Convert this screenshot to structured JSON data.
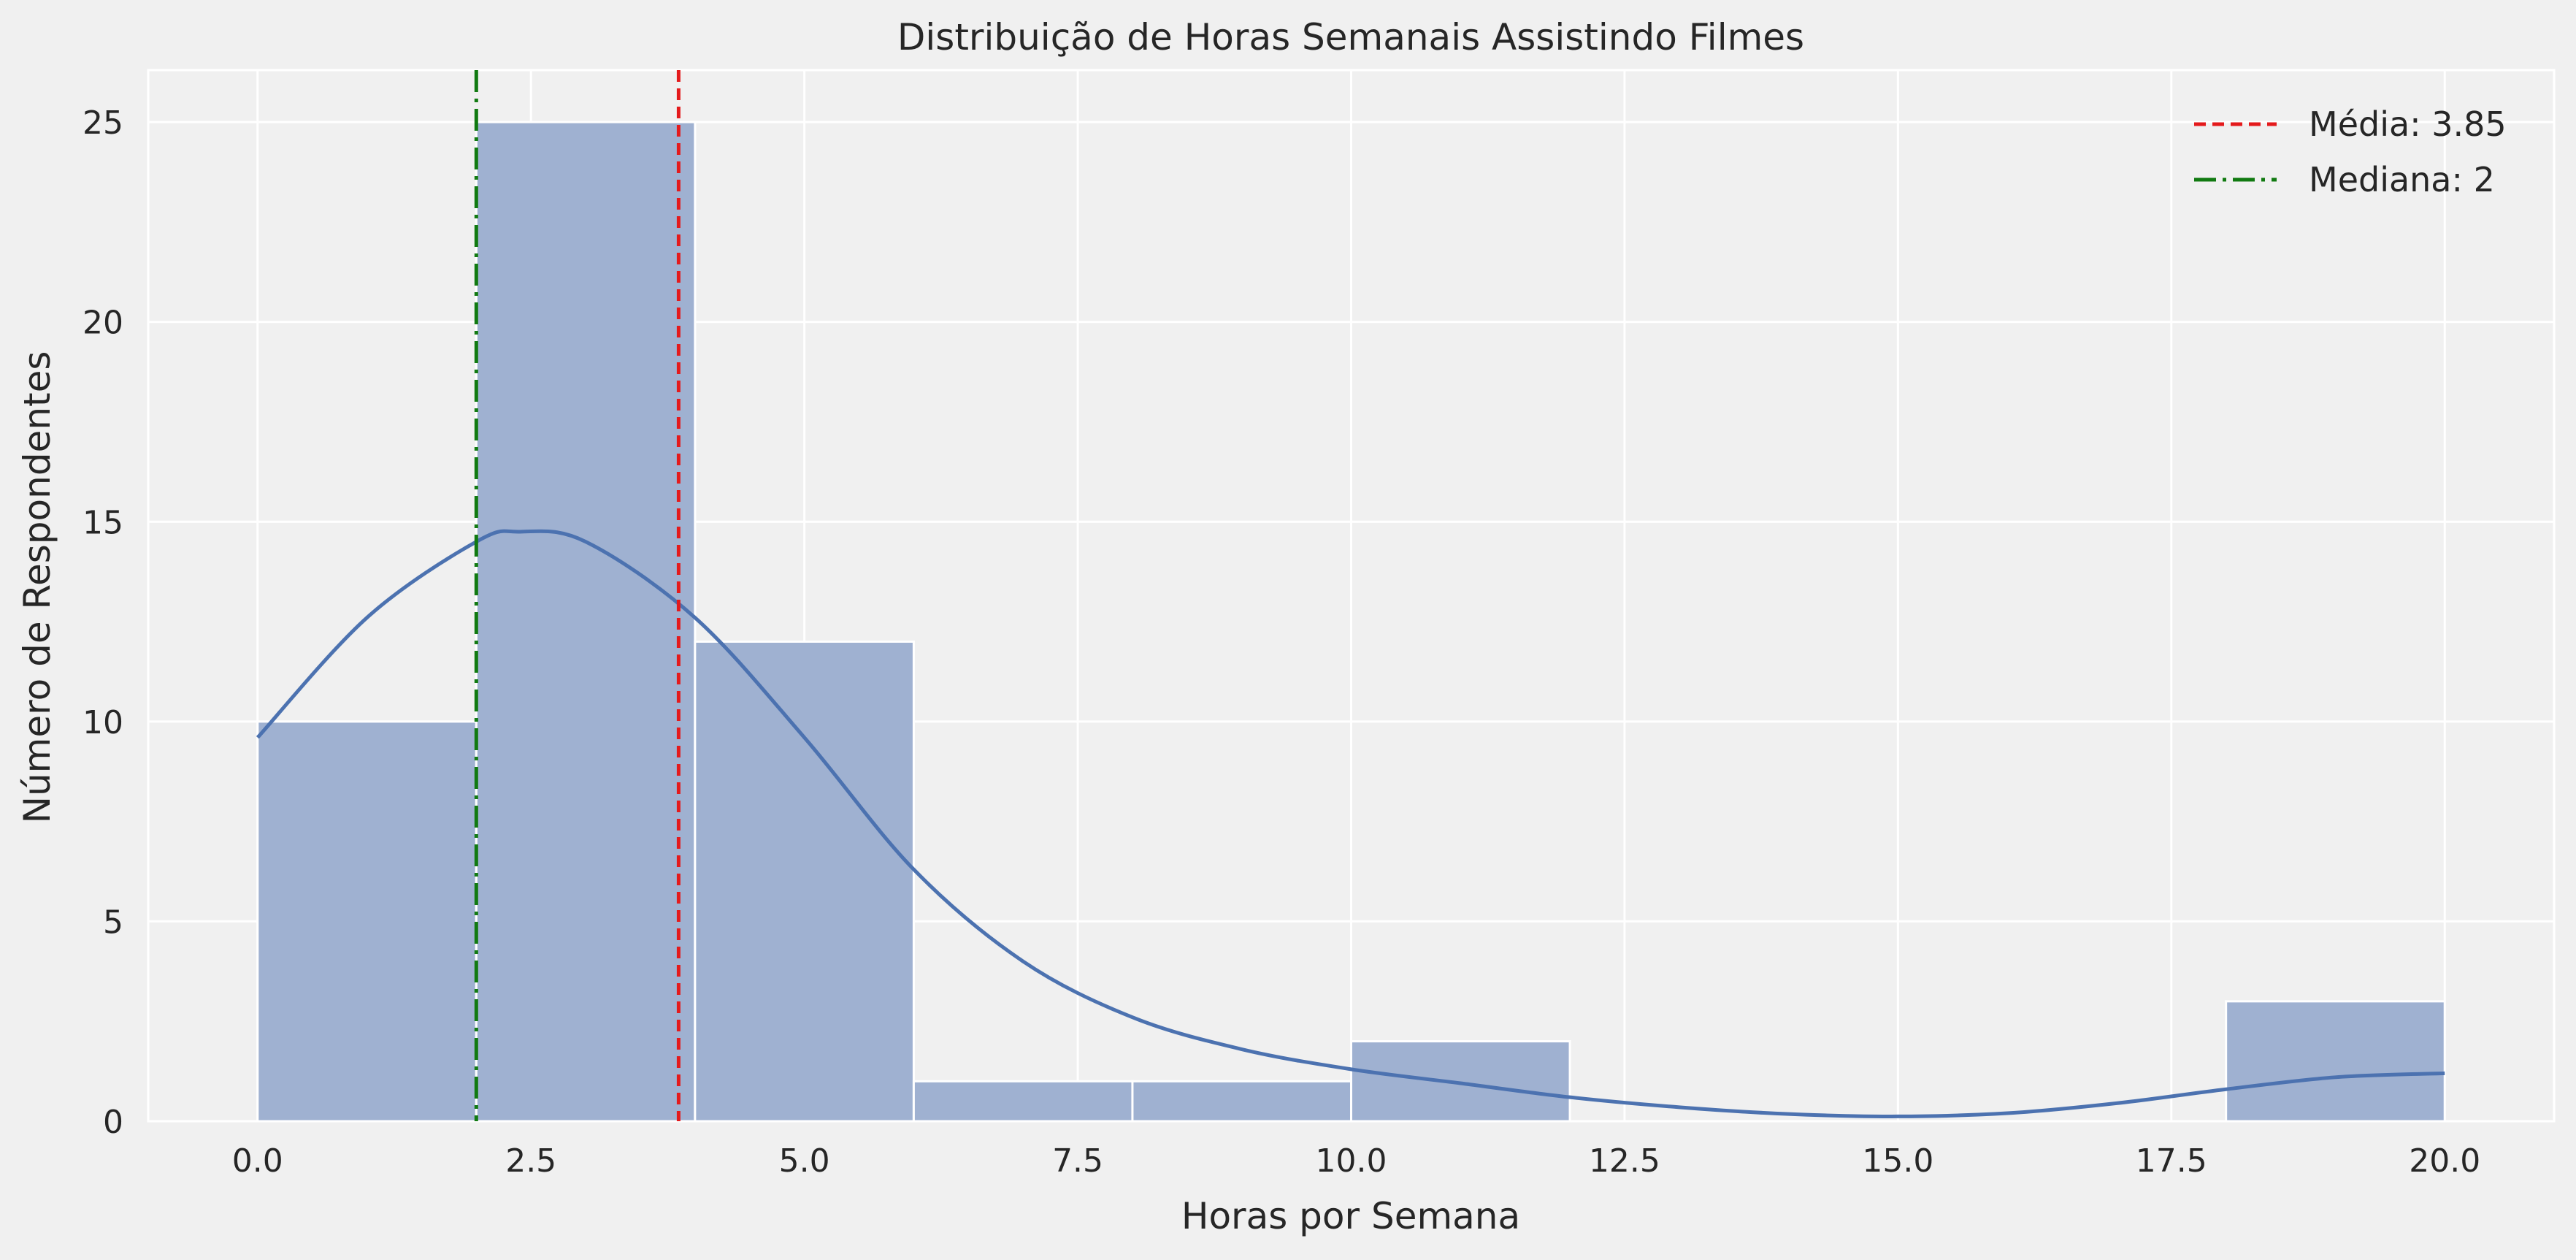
{
  "chart_data": {
    "type": "bar",
    "subtype": "histogram",
    "title": "Distribuição de Horas Semanais Assistindo Filmes",
    "xlabel": "Horas por Semana",
    "ylabel": "Número de Respondentes",
    "xlim": [
      -1,
      21
    ],
    "ylim": [
      0,
      26.3
    ],
    "grid": true,
    "xticks": [
      0,
      2.5,
      5,
      7.5,
      10,
      12.5,
      15,
      17.5,
      20
    ],
    "xtick_labels": [
      "0.0",
      "2.5",
      "5.0",
      "7.5",
      "10.0",
      "12.5",
      "15.0",
      "17.5",
      "20.0"
    ],
    "yticks": [
      0,
      5,
      10,
      15,
      20,
      25
    ],
    "ytick_labels": [
      "0",
      "5",
      "10",
      "15",
      "20",
      "25"
    ],
    "bins": [
      {
        "start": 0,
        "end": 2,
        "count": 10
      },
      {
        "start": 2,
        "end": 4,
        "count": 25
      },
      {
        "start": 4,
        "end": 6,
        "count": 12
      },
      {
        "start": 6,
        "end": 8,
        "count": 1
      },
      {
        "start": 8,
        "end": 10,
        "count": 1
      },
      {
        "start": 10,
        "end": 12,
        "count": 2
      },
      {
        "start": 12,
        "end": 14,
        "count": 0
      },
      {
        "start": 14,
        "end": 16,
        "count": 0
      },
      {
        "start": 16,
        "end": 18,
        "count": 0
      },
      {
        "start": 18,
        "end": 20,
        "count": 3
      }
    ],
    "kde": {
      "x": [
        0,
        1,
        2,
        2.4,
        3,
        4,
        5,
        6,
        7,
        8,
        9,
        10,
        11,
        12,
        13,
        14,
        15,
        16,
        17,
        18,
        19,
        20
      ],
      "y": [
        9.6,
        12.6,
        14.5,
        14.75,
        14.5,
        12.6,
        9.6,
        6.3,
        4.0,
        2.6,
        1.8,
        1.3,
        0.95,
        0.6,
        0.35,
        0.18,
        0.12,
        0.2,
        0.45,
        0.8,
        1.1,
        1.2
      ]
    },
    "reference_lines": [
      {
        "name": "Média: 3.85",
        "x": 3.85,
        "color": "#e41a1c",
        "style": "dashed"
      },
      {
        "name": "Mediana: 2",
        "x": 2,
        "color": "#117a11",
        "style": "dashdot"
      }
    ],
    "legend": {
      "placement": "top-right"
    },
    "colors": {
      "bar_fill": "#9fb1d1",
      "bar_edge": "#ffffff",
      "kde": "#4c72b0",
      "plot_bg": "#f0f0f0",
      "grid": "#ffffff"
    }
  }
}
